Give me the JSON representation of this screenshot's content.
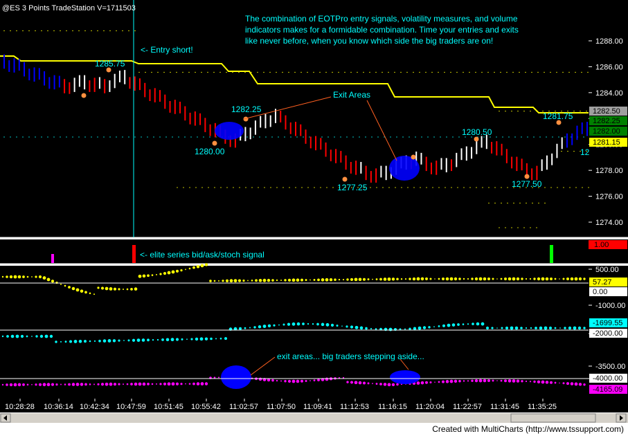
{
  "window": {
    "title": "@ES  3 Points  TradeStation  V=1711503"
  },
  "annotations": {
    "description_line1": "The combination of EOTPro entry signals, volatility measures, and volume",
    "description_line2": "indicators makes for a formidable combination.  Time your entries and exits",
    "description_line3": "like never before, when you know which side the big traders are on!",
    "entry_short": "<- Entry short!",
    "exit_areas": "Exit Areas",
    "signal_label": "<- elite series bid/ask/stoch signal",
    "exit_areas_lower": "exit areas... big traders stepping aside..."
  },
  "price_labels": [
    {
      "text": "1285.75"
    },
    {
      "text": "1282.25"
    },
    {
      "text": "1280.00"
    },
    {
      "text": "1277.25"
    },
    {
      "text": "1280.50"
    },
    {
      "text": "1277.50"
    },
    {
      "text": "1281.75"
    },
    {
      "text": "12"
    }
  ],
  "price_axis": {
    "ticks": [
      "1288.00",
      "1286.00",
      "1284.00",
      "1282.00",
      "1280.00",
      "1278.00",
      "1276.00",
      "1274.00"
    ],
    "tags": [
      {
        "text": "1282.50",
        "bg": "#a0a0a0",
        "fg": "#000000"
      },
      {
        "text": "1282.25",
        "bg": "#008000",
        "fg": "#000000"
      },
      {
        "text": "1282.00",
        "bg": "#008000",
        "fg": "#000000"
      },
      {
        "text": "1281.15",
        "bg": "#ffff00",
        "fg": "#000000"
      }
    ]
  },
  "signal_axis": {
    "tag": {
      "text": "1.00",
      "bg": "#ff0000",
      "fg": "#000000"
    }
  },
  "indicator_axis": {
    "ticks": [
      "500.00",
      "-1000.00",
      "-2000.00",
      "-3500.00",
      "-4000.00"
    ],
    "tags": [
      {
        "text": "57.27",
        "bg": "#ffff00",
        "fg": "#000000"
      },
      {
        "text": "0.00",
        "bg": "#ffffff",
        "fg": "#000000"
      },
      {
        "text": "-1699.55",
        "bg": "#00ffff",
        "fg": "#000000"
      },
      {
        "text": "-2000.00",
        "bg": "#ffffff",
        "fg": "#000000"
      },
      {
        "text": "-4000.00",
        "bg": "#ffffff",
        "fg": "#000000"
      },
      {
        "text": "-4165.09",
        "bg": "#ff00ff",
        "fg": "#000000"
      }
    ]
  },
  "time_axis": {
    "labels": [
      "10:28:28",
      "10:36:14",
      "10:42:34",
      "10:47:59",
      "10:51:45",
      "10:55:42",
      "11:02:57",
      "11:07:50",
      "11:09:41",
      "11:12:53",
      "11:16:15",
      "11:20:04",
      "11:22:57",
      "11:31:45",
      "11:35:25"
    ]
  },
  "footer": {
    "text": "Created with MultiCharts (http://www.tssupport.com)"
  },
  "colors": {
    "background": "#000000",
    "accent_cyan": "#00ffff",
    "stop_line": "#ffff00",
    "bar_up": "#ffffff",
    "bar_down": "#ff0000",
    "bar_blue": "#0000ff",
    "signal_red": "#ff0000",
    "signal_green": "#00ff00",
    "signal_magenta": "#ff00ff"
  },
  "chart_data": [
    {
      "type": "line",
      "title": "@ES  3 Points  TradeStation  V=1711503",
      "xlabel": "",
      "ylabel": "",
      "ylim": [
        1273,
        1290
      ],
      "series": [
        {
          "values": [
            1286.4,
            1286.1,
            1285.8,
            1285.4,
            1285.1,
            1284.8,
            1284.5,
            1284.6,
            1284.8,
            1284.6,
            1284.5,
            1284.9,
            1285.2,
            1284.7,
            1284.2,
            1283.8,
            1283.3,
            1282.9,
            1282.4,
            1282.0,
            1281.5,
            1281.1,
            1280.6,
            1280.3,
            1280.8,
            1281.3,
            1281.8,
            1282.2,
            1281.7,
            1281.2,
            1280.6,
            1280.1,
            1279.6,
            1279.1,
            1278.6,
            1278.2,
            1277.8,
            1277.6,
            1277.8,
            1278.2,
            1278.6,
            1278.9,
            1278.5,
            1278.2,
            1278.4,
            1278.8,
            1279.3,
            1279.8,
            1280.2,
            1279.7,
            1279.1,
            1278.5,
            1278.0,
            1277.8,
            1278.6,
            1279.5,
            1280.3,
            1280.9,
            1281.2
          ]
        }
      ],
      "annotations": [
        "1285.75",
        "1282.25",
        "1280.00",
        "1277.25",
        "1280.50",
        "1277.50",
        "1281.75"
      ]
    }
  ]
}
